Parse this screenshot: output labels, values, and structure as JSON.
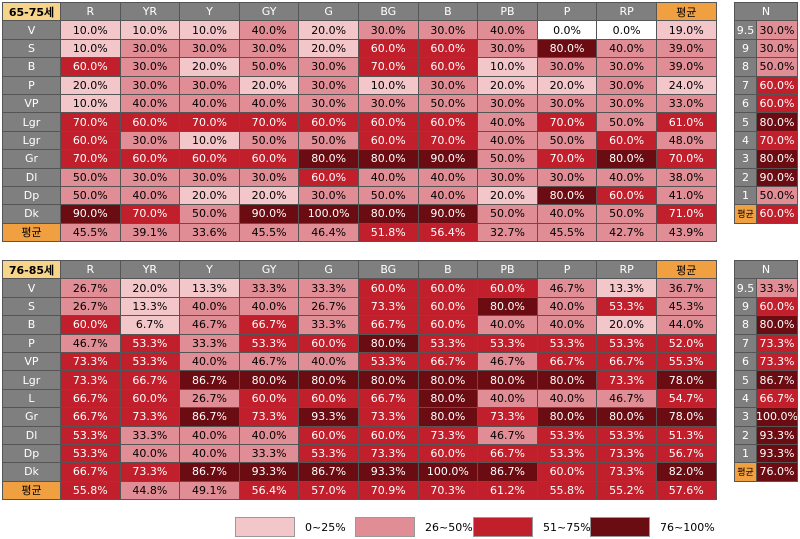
{
  "panels": [
    {
      "age": "65-75세",
      "columns": [
        "R",
        "YR",
        "Y",
        "GY",
        "G",
        "BG",
        "B",
        "PB",
        "P",
        "RP",
        "평균"
      ],
      "rows": [
        {
          "label": "V",
          "cells": [
            "10.0%",
            "10.0%",
            "10.0%",
            "40.0%",
            "20.0%",
            "30.0%",
            "30.0%",
            "40.0%",
            "0.0%",
            "0.0%",
            "19.0%"
          ]
        },
        {
          "label": "S",
          "cells": [
            "10.0%",
            "30.0%",
            "30.0%",
            "30.0%",
            "20.0%",
            "60.0%",
            "60.0%",
            "30.0%",
            "80.0%",
            "40.0%",
            "39.0%"
          ]
        },
        {
          "label": "B",
          "cells": [
            "60.0%",
            "30.0%",
            "20.0%",
            "50.0%",
            "30.0%",
            "70.0%",
            "60.0%",
            "10.0%",
            "30.0%",
            "30.0%",
            "39.0%"
          ]
        },
        {
          "label": "P",
          "cells": [
            "20.0%",
            "30.0%",
            "30.0%",
            "20.0%",
            "30.0%",
            "10.0%",
            "30.0%",
            "20.0%",
            "20.0%",
            "30.0%",
            "24.0%"
          ]
        },
        {
          "label": "VP",
          "cells": [
            "10.0%",
            "40.0%",
            "40.0%",
            "40.0%",
            "30.0%",
            "30.0%",
            "50.0%",
            "30.0%",
            "30.0%",
            "30.0%",
            "33.0%"
          ]
        },
        {
          "label": "Lgr",
          "cells": [
            "70.0%",
            "60.0%",
            "70.0%",
            "70.0%",
            "60.0%",
            "60.0%",
            "60.0%",
            "40.0%",
            "70.0%",
            "50.0%",
            "61.0%"
          ]
        },
        {
          "label": "Lgr",
          "cells": [
            "60.0%",
            "30.0%",
            "10.0%",
            "50.0%",
            "50.0%",
            "60.0%",
            "70.0%",
            "40.0%",
            "50.0%",
            "60.0%",
            "48.0%"
          ]
        },
        {
          "label": "Gr",
          "cells": [
            "70.0%",
            "60.0%",
            "60.0%",
            "60.0%",
            "80.0%",
            "80.0%",
            "90.0%",
            "50.0%",
            "70.0%",
            "80.0%",
            "70.0%"
          ]
        },
        {
          "label": "Dl",
          "cells": [
            "50.0%",
            "30.0%",
            "30.0%",
            "30.0%",
            "60.0%",
            "40.0%",
            "40.0%",
            "30.0%",
            "30.0%",
            "40.0%",
            "38.0%"
          ]
        },
        {
          "label": "Dp",
          "cells": [
            "50.0%",
            "40.0%",
            "20.0%",
            "20.0%",
            "30.0%",
            "50.0%",
            "40.0%",
            "20.0%",
            "80.0%",
            "60.0%",
            "41.0%"
          ]
        },
        {
          "label": "Dk",
          "cells": [
            "90.0%",
            "70.0%",
            "50.0%",
            "90.0%",
            "100.0%",
            "80.0%",
            "90.0%",
            "50.0%",
            "40.0%",
            "50.0%",
            "71.0%"
          ]
        },
        {
          "label": "평균",
          "cells": [
            "45.5%",
            "39.1%",
            "33.6%",
            "45.5%",
            "46.4%",
            "51.8%",
            "56.4%",
            "32.7%",
            "45.5%",
            "42.7%",
            "43.9%"
          ]
        }
      ],
      "n": {
        "header": "N",
        "rows": [
          {
            "label": "9.5",
            "value": "30.0%"
          },
          {
            "label": "9",
            "value": "30.0%"
          },
          {
            "label": "8",
            "value": "50.0%"
          },
          {
            "label": "7",
            "value": "60.0%"
          },
          {
            "label": "6",
            "value": "60.0%"
          },
          {
            "label": "5",
            "value": "80.0%"
          },
          {
            "label": "4",
            "value": "70.0%"
          },
          {
            "label": "3",
            "value": "80.0%"
          },
          {
            "label": "2",
            "value": "90.0%"
          },
          {
            "label": "1",
            "value": "50.0%"
          },
          {
            "label": "평균",
            "value": "60.0%"
          }
        ]
      }
    },
    {
      "age": "76-85세",
      "columns": [
        "R",
        "YR",
        "Y",
        "GY",
        "G",
        "BG",
        "B",
        "PB",
        "P",
        "RP",
        "평균"
      ],
      "rows": [
        {
          "label": "V",
          "cells": [
            "26.7%",
            "20.0%",
            "13.3%",
            "33.3%",
            "33.3%",
            "60.0%",
            "60.0%",
            "60.0%",
            "46.7%",
            "13.3%",
            "36.7%"
          ]
        },
        {
          "label": "S",
          "cells": [
            "26.7%",
            "13.3%",
            "40.0%",
            "40.0%",
            "26.7%",
            "73.3%",
            "60.0%",
            "80.0%",
            "40.0%",
            "53.3%",
            "45.3%"
          ]
        },
        {
          "label": "B",
          "cells": [
            "60.0%",
            "6.7%",
            "46.7%",
            "66.7%",
            "33.3%",
            "66.7%",
            "60.0%",
            "40.0%",
            "40.0%",
            "20.0%",
            "44.0%"
          ]
        },
        {
          "label": "P",
          "cells": [
            "46.7%",
            "53.3%",
            "33.3%",
            "53.3%",
            "60.0%",
            "80.0%",
            "53.3%",
            "53.3%",
            "53.3%",
            "53.3%",
            "52.0%"
          ]
        },
        {
          "label": "VP",
          "cells": [
            "73.3%",
            "53.3%",
            "40.0%",
            "46.7%",
            "40.0%",
            "53.3%",
            "66.7%",
            "46.7%",
            "66.7%",
            "66.7%",
            "55.3%"
          ]
        },
        {
          "label": "Lgr",
          "cells": [
            "73.3%",
            "66.7%",
            "86.7%",
            "80.0%",
            "80.0%",
            "80.0%",
            "80.0%",
            "80.0%",
            "80.0%",
            "73.3%",
            "78.0%"
          ]
        },
        {
          "label": "L",
          "cells": [
            "66.7%",
            "60.0%",
            "26.7%",
            "60.0%",
            "60.0%",
            "66.7%",
            "80.0%",
            "40.0%",
            "40.0%",
            "46.7%",
            "54.7%"
          ]
        },
        {
          "label": "Gr",
          "cells": [
            "66.7%",
            "73.3%",
            "86.7%",
            "73.3%",
            "93.3%",
            "73.3%",
            "80.0%",
            "73.3%",
            "80.0%",
            "80.0%",
            "78.0%"
          ]
        },
        {
          "label": "Dl",
          "cells": [
            "53.3%",
            "33.3%",
            "40.0%",
            "40.0%",
            "60.0%",
            "60.0%",
            "73.3%",
            "46.7%",
            "53.3%",
            "53.3%",
            "51.3%"
          ]
        },
        {
          "label": "Dp",
          "cells": [
            "53.3%",
            "40.0%",
            "40.0%",
            "33.3%",
            "53.3%",
            "73.3%",
            "60.0%",
            "66.7%",
            "53.3%",
            "73.3%",
            "56.7%"
          ]
        },
        {
          "label": "Dk",
          "cells": [
            "66.7%",
            "73.3%",
            "86.7%",
            "93.3%",
            "86.7%",
            "93.3%",
            "100.0%",
            "86.7%",
            "60.0%",
            "73.3%",
            "82.0%"
          ]
        },
        {
          "label": "평균",
          "cells": [
            "55.8%",
            "44.8%",
            "49.1%",
            "56.4%",
            "57.0%",
            "70.9%",
            "70.3%",
            "61.2%",
            "55.8%",
            "55.2%",
            "57.6%"
          ]
        }
      ],
      "n": {
        "header": "N",
        "rows": [
          {
            "label": "9.5",
            "value": "33.3%"
          },
          {
            "label": "9",
            "value": "60.0%"
          },
          {
            "label": "8",
            "value": "80.0%"
          },
          {
            "label": "7",
            "value": "73.3%"
          },
          {
            "label": "6",
            "value": "73.3%"
          },
          {
            "label": "5",
            "value": "86.7%"
          },
          {
            "label": "4",
            "value": "66.7%"
          },
          {
            "label": "3",
            "value": "100.0%"
          },
          {
            "label": "2",
            "value": "93.3%"
          },
          {
            "label": "1",
            "value": "93.3%"
          },
          {
            "label": "평균",
            "value": "76.0%"
          }
        ]
      }
    }
  ],
  "legend": [
    {
      "label": "0~25%",
      "color": "#f3c6ca"
    },
    {
      "label": "26~50%",
      "color": "#e08d95"
    },
    {
      "label": "51~75%",
      "color": "#c01f2b"
    },
    {
      "label": "76~100%",
      "color": "#6b0b12"
    }
  ]
}
